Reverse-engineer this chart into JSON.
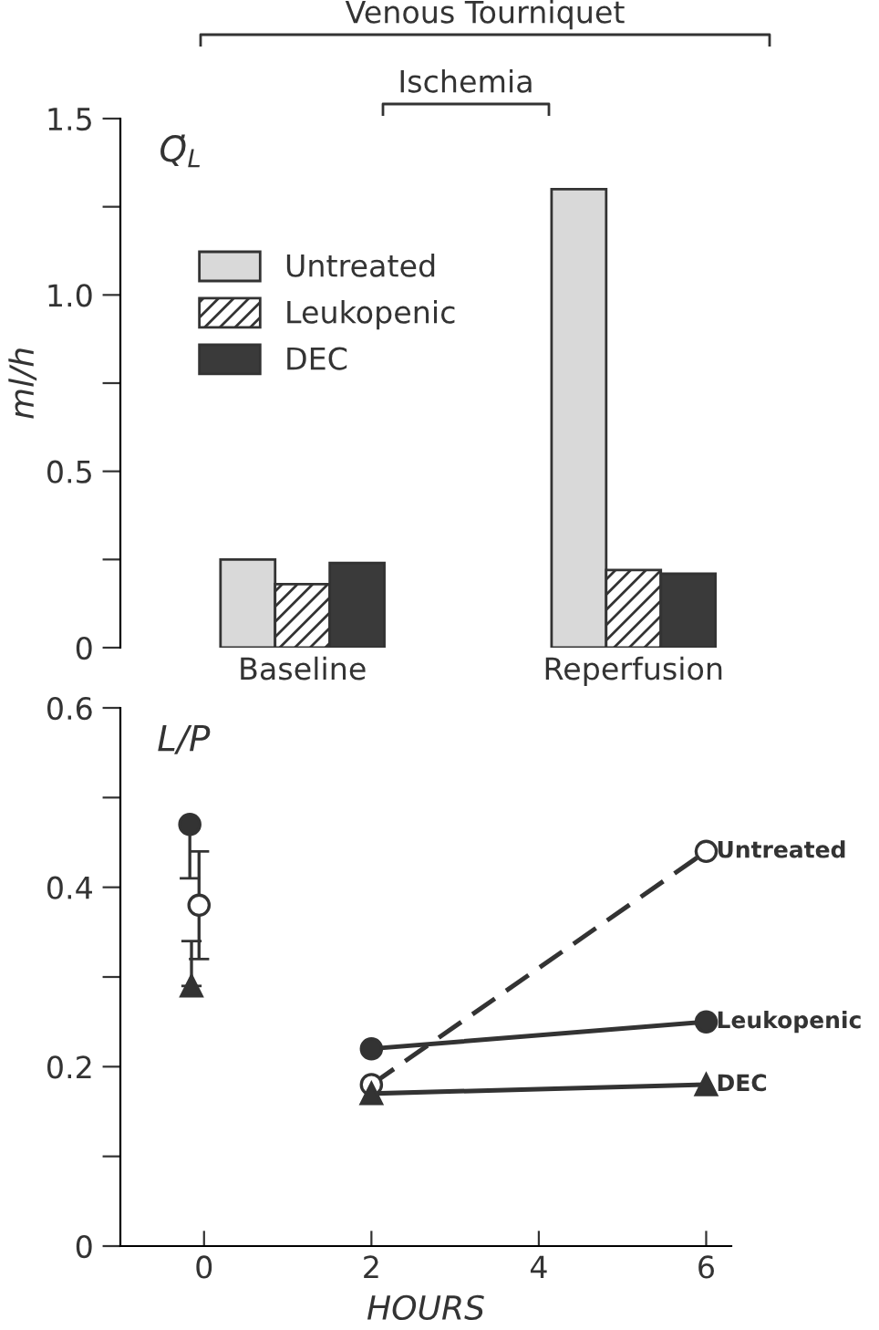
{
  "chart_data": [
    {
      "type": "bar",
      "title": "Q̇$_{L}$",
      "ylabel": "ml/h",
      "categories": [
        "Baseline",
        "Reperfusion"
      ],
      "series": [
        {
          "name": "Untreated",
          "color": "#d9d9d9",
          "values": [
            0.25,
            1.3
          ]
        },
        {
          "name": "Leukopenic",
          "color": "#333333",
          "values": [
            0.18,
            0.22
          ]
        },
        {
          "name": "DEC",
          "color": "#3a3a3a",
          "values": [
            0.24,
            0.21
          ]
        }
      ],
      "ylim": [
        0,
        1.5
      ],
      "yticks": [
        0,
        {
          "value": 0.25,
          "label": null
        },
        0.5,
        {
          "value": 0.75,
          "label": null
        },
        {
          "value": 1,
          "label": "1.0"
        },
        {
          "value": 1.25,
          "label": null
        },
        1.5
      ],
      "legend": "top left",
      "grid": false,
      "annotations": [
        "Venous Tourniquet",
        "Ischemia"
      ]
    },
    {
      "type": "line",
      "title": "L/P",
      "xlabel": "HOURS",
      "series": [
        {
          "type": "scatter",
          "color": "#333333",
          "marker": "circle",
          "x": [
            -0.17
          ],
          "values": [
            0.47
          ],
          "errors": [
            [
              0.41,
              0.47
            ]
          ]
        },
        {
          "type": "scatter",
          "color": "#333333",
          "colors": [
            "#ffffff"
          ],
          "marker": "circle",
          "x": [
            -0.06
          ],
          "values": [
            0.38
          ],
          "errors": [
            [
              0.32,
              0.44
            ]
          ]
        },
        {
          "type": "scatter",
          "color": "#333333",
          "marker": "triangle",
          "x": [
            -0.15
          ],
          "values": [
            0.29
          ],
          "errors": [
            [
              0.29,
              0.34
            ]
          ]
        },
        {
          "name": "Untreated",
          "color": "#333333",
          "colors": [
            "#ffffff",
            "#ffffff"
          ],
          "marker": "circle",
          "line_style": "dashed",
          "x": [
            2,
            6
          ],
          "values": [
            0.18,
            0.44
          ]
        },
        {
          "name": "Leukopenic",
          "color": "#333333",
          "marker": "circle",
          "line_style": "solid",
          "x": [
            2,
            6
          ],
          "values": [
            0.22,
            0.25
          ]
        },
        {
          "name": "DEC",
          "color": "#333333",
          "marker": "triangle",
          "line_style": "solid",
          "x": [
            2,
            6
          ],
          "values": [
            0.17,
            0.18
          ]
        }
      ],
      "xlim": [
        -1,
        6.3
      ],
      "xticks": [
        0,
        2,
        4,
        6
      ],
      "ylim": [
        0,
        0.6
      ],
      "yticks": [
        0,
        {
          "value": 0.1,
          "label": null
        },
        0.2,
        {
          "value": 0.3,
          "label": null
        },
        0.4,
        {
          "value": 0.5,
          "label": null
        },
        0.6
      ],
      "grid": false,
      "legend": false
    }
  ]
}
